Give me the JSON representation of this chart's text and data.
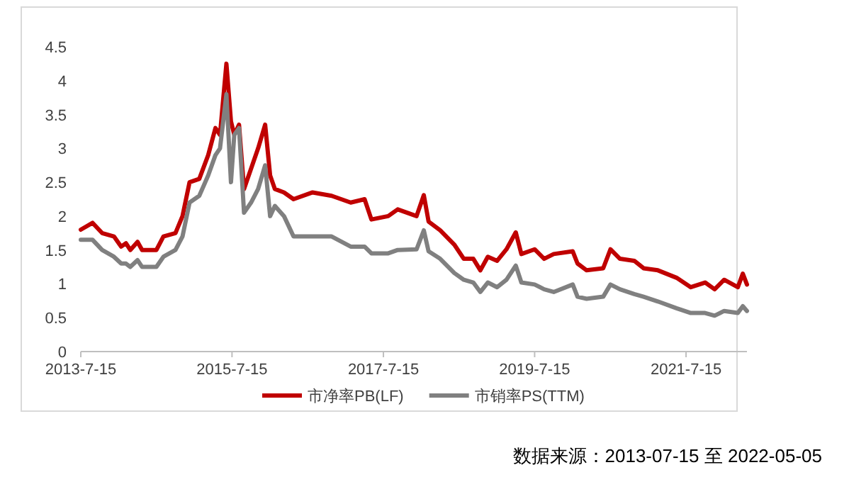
{
  "chart_data": {
    "type": "line",
    "x": [
      "2013-07-15",
      "2013-09-10",
      "2013-10-26",
      "2013-12-22",
      "2014-01-26",
      "2014-02-18",
      "2014-03-11",
      "2014-04-15",
      "2014-05-07",
      "2014-07-15",
      "2014-08-18",
      "2014-10-15",
      "2014-11-18",
      "2014-12-22",
      "2015-02-07",
      "2015-03-22",
      "2015-04-26",
      "2015-05-18",
      "2015-06-18",
      "2015-07-10",
      "2015-07-26",
      "2015-08-18",
      "2015-09-11",
      "2015-10-15",
      "2015-11-18",
      "2015-12-22",
      "2016-01-15",
      "2016-02-07",
      "2016-03-22",
      "2016-05-07",
      "2016-08-07",
      "2016-11-07",
      "2017-02-07",
      "2017-04-15",
      "2017-05-18",
      "2017-08-07",
      "2017-09-22",
      "2017-12-22",
      "2018-01-26",
      "2018-02-18",
      "2018-04-15",
      "2018-06-22",
      "2018-08-07",
      "2018-09-22",
      "2018-10-26",
      "2018-12-01",
      "2019-01-15",
      "2019-03-01",
      "2019-04-15",
      "2019-05-12",
      "2019-07-15",
      "2019-08-30",
      "2019-10-15",
      "2020-01-15",
      "2020-02-07",
      "2020-03-22",
      "2020-06-10",
      "2020-07-15",
      "2020-08-30",
      "2020-11-07",
      "2020-12-22",
      "2021-03-01",
      "2021-05-30",
      "2021-08-07",
      "2021-10-15",
      "2021-11-30",
      "2022-01-15",
      "2022-03-22",
      "2022-04-15",
      "2022-05-05"
    ],
    "series": [
      {
        "name": "市净率PB(LF)",
        "color": "#c00000",
        "values": [
          1.8,
          1.9,
          1.75,
          1.7,
          1.55,
          1.6,
          1.5,
          1.62,
          1.5,
          1.5,
          1.7,
          1.75,
          2.0,
          2.5,
          2.55,
          2.9,
          3.3,
          3.2,
          4.25,
          3.4,
          3.2,
          3.35,
          2.4,
          2.7,
          3.0,
          3.35,
          2.6,
          2.4,
          2.35,
          2.25,
          2.35,
          2.3,
          2.2,
          2.25,
          1.95,
          2.0,
          2.1,
          2.0,
          2.31,
          1.92,
          1.79,
          1.58,
          1.37,
          1.37,
          1.2,
          1.4,
          1.34,
          1.51,
          1.76,
          1.44,
          1.51,
          1.37,
          1.44,
          1.48,
          1.3,
          1.2,
          1.23,
          1.51,
          1.37,
          1.34,
          1.23,
          1.2,
          1.09,
          0.95,
          1.02,
          0.92,
          1.06,
          0.95,
          1.15,
          0.99
        ]
      },
      {
        "name": "市销率PS(TTM)",
        "color": "#808080",
        "values": [
          1.65,
          1.65,
          1.5,
          1.4,
          1.3,
          1.3,
          1.25,
          1.35,
          1.25,
          1.25,
          1.4,
          1.5,
          1.7,
          2.2,
          2.3,
          2.6,
          2.9,
          3.0,
          3.8,
          2.5,
          3.2,
          3.3,
          2.05,
          2.2,
          2.4,
          2.75,
          2.0,
          2.15,
          2.0,
          1.7,
          1.7,
          1.7,
          1.55,
          1.55,
          1.45,
          1.45,
          1.5,
          1.51,
          1.79,
          1.48,
          1.37,
          1.16,
          1.06,
          1.02,
          0.88,
          1.02,
          0.95,
          1.06,
          1.27,
          1.02,
          0.99,
          0.92,
          0.88,
          0.99,
          0.81,
          0.78,
          0.81,
          0.99,
          0.92,
          0.85,
          0.81,
          0.74,
          0.64,
          0.57,
          0.57,
          0.53,
          0.6,
          0.57,
          0.67,
          0.6
        ]
      }
    ],
    "xlim": [
      "2013-07-15",
      "2022-05-05"
    ],
    "xticks": [
      {
        "value": "2013-07-15",
        "label": "2013-7-15"
      },
      {
        "value": "2015-07-15",
        "label": "2015-7-15"
      },
      {
        "value": "2017-07-15",
        "label": "2017-7-15"
      },
      {
        "value": "2019-07-15",
        "label": "2019-7-15"
      },
      {
        "value": "2021-07-15",
        "label": "2021-7-15"
      }
    ],
    "ylim": [
      0,
      4.5
    ],
    "yticks": [
      0,
      0.5,
      1,
      1.5,
      2,
      2.5,
      3,
      3.5,
      4,
      4.5
    ],
    "legend": "bottom",
    "annotations": [
      "数据来源：2013-07-15 至 2022-05-05"
    ]
  }
}
